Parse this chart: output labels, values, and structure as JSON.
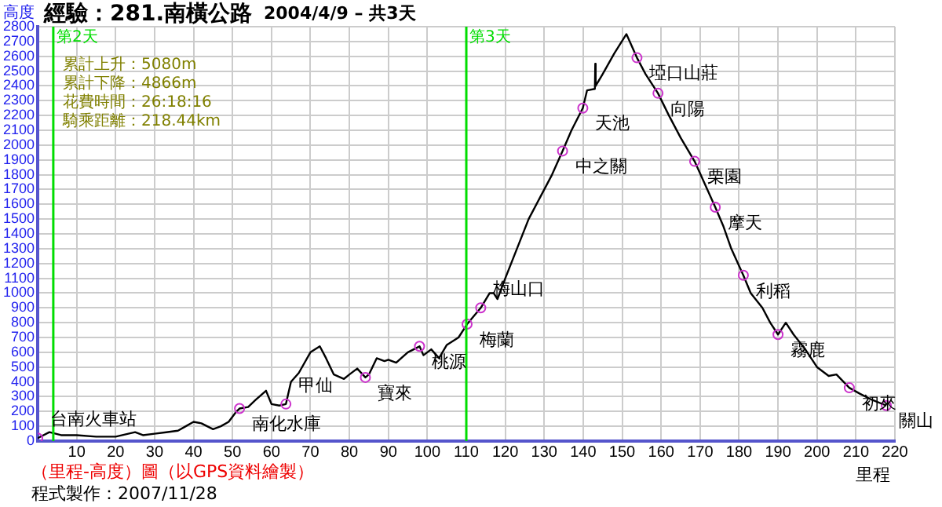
{
  "chart_data": {
    "type": "line",
    "title": "經驗：281.南橫公路",
    "subtitle": "2004/4/9 – 共3天",
    "xlabel": "里程",
    "ylabel": "高度",
    "xlim": [
      0,
      220
    ],
    "xticks": [
      10,
      20,
      30,
      40,
      50,
      60,
      70,
      80,
      90,
      100,
      110,
      120,
      130,
      140,
      150,
      160,
      170,
      180,
      190,
      200,
      210,
      220
    ],
    "ylim": [
      0,
      2800
    ],
    "yticks": [
      0,
      100,
      200,
      300,
      400,
      500,
      600,
      700,
      800,
      900,
      1000,
      1100,
      1200,
      1300,
      1400,
      1500,
      1600,
      1700,
      1800,
      1900,
      2000,
      2100,
      2200,
      2300,
      2400,
      2500,
      2600,
      2700,
      2800
    ],
    "grid": true,
    "legend": false,
    "series": [
      {
        "type": "line",
        "color": "#000000",
        "marker": "none",
        "x": [
          0,
          3,
          6,
          10,
          15,
          20,
          25,
          27,
          30,
          33,
          36,
          38,
          40,
          42,
          45,
          47,
          49,
          51,
          51.8,
          54,
          56,
          58.6,
          60,
          62,
          63.7,
          65,
          67,
          70,
          72.4,
          74,
          76,
          78.6,
          80,
          82,
          84.1,
          85,
          87,
          89,
          90,
          92,
          95,
          98,
          99,
          101,
          103,
          105,
          108,
          110.2,
          113.7,
          116,
          117,
          118,
          120,
          123,
          126,
          129,
          132,
          134.7,
          137,
          139.9,
          141,
          143,
          143.1,
          143.2,
          145,
          148,
          151.1,
          153.8,
          156,
          159.2,
          162,
          165,
          168.6,
          171,
          173.9,
          176,
          178,
          181.1,
          183,
          186,
          188,
          190,
          192,
          194,
          197,
          200,
          203,
          205,
          208.3,
          211,
          214,
          217.8
        ],
        "values": [
          20,
          60,
          40,
          40,
          30,
          30,
          60,
          40,
          50,
          60,
          70,
          100,
          130,
          120,
          80,
          100,
          130,
          200,
          220,
          230,
          280,
          340,
          250,
          240,
          250,
          400,
          460,
          600,
          640,
          560,
          450,
          420,
          450,
          490,
          430,
          450,
          560,
          540,
          550,
          530,
          600,
          640,
          580,
          620,
          560,
          650,
          700,
          790,
          900,
          1000,
          1000,
          960,
          1100,
          1300,
          1500,
          1650,
          1800,
          1960,
          2100,
          2250,
          2370,
          2380,
          2550,
          2400,
          2480,
          2620,
          2750,
          2590,
          2480,
          2350,
          2200,
          2050,
          1890,
          1750,
          1580,
          1450,
          1300,
          1120,
          1000,
          900,
          800,
          720,
          800,
          720,
          620,
          500,
          440,
          450,
          360,
          320,
          280,
          240
        ]
      },
      {
        "type": "scatter",
        "color": "#cc33cc",
        "marker": "circle",
        "x": [
          0,
          51.8,
          63.7,
          84.1,
          98,
          110.2,
          113.7,
          134.7,
          139.9,
          153.8,
          159.2,
          168.6,
          173.9,
          181.1,
          190,
          208.3,
          217.8
        ],
        "values": [
          20,
          220,
          250,
          430,
          640,
          790,
          900,
          1960,
          2250,
          2590,
          2350,
          1890,
          1580,
          1120,
          720,
          360,
          240
        ]
      }
    ],
    "ref_lines": [
      {
        "axis": "x",
        "value": 4,
        "label": "第2天",
        "color": "#00dd00"
      },
      {
        "axis": "x",
        "value": 110,
        "label": "第3天",
        "color": "#00dd00"
      }
    ],
    "annotations": [
      "累計上升：5080m",
      "累計下降：4866m",
      "花費時間：26:18:16",
      "騎乘距離：218.44km",
      "（里程-高度）圖（以GPS資料繪製）",
      "程式製作：2007/11/28",
      {
        "text": "台南火車站",
        "x": 0,
        "y": 20
      },
      {
        "text": "南化水庫",
        "x": 51.8,
        "y": 220
      },
      {
        "text": "甲仙",
        "x": 63.7,
        "y": 250
      },
      {
        "text": "寶來",
        "x": 84.1,
        "y": 430
      },
      {
        "text": "桃源",
        "x": 98,
        "y": 640
      },
      {
        "text": "梅蘭",
        "x": 110.2,
        "y": 790
      },
      {
        "text": "梅山口",
        "x": 113.7,
        "y": 900
      },
      {
        "text": "中之關",
        "x": 134.7,
        "y": 1960
      },
      {
        "text": "天池",
        "x": 139.9,
        "y": 2250
      },
      {
        "text": "埡口山莊",
        "x": 153.8,
        "y": 2590
      },
      {
        "text": "向陽",
        "x": 159.2,
        "y": 2350
      },
      {
        "text": "栗園",
        "x": 168.6,
        "y": 1890
      },
      {
        "text": "摩天",
        "x": 173.9,
        "y": 1580
      },
      {
        "text": "利稻",
        "x": 181.1,
        "y": 1120
      },
      {
        "text": "霧鹿",
        "x": 190,
        "y": 720
      },
      {
        "text": "初來",
        "x": 208.3,
        "y": 360
      },
      {
        "text": "關山",
        "x": 217.8,
        "y": 240
      }
    ]
  }
}
